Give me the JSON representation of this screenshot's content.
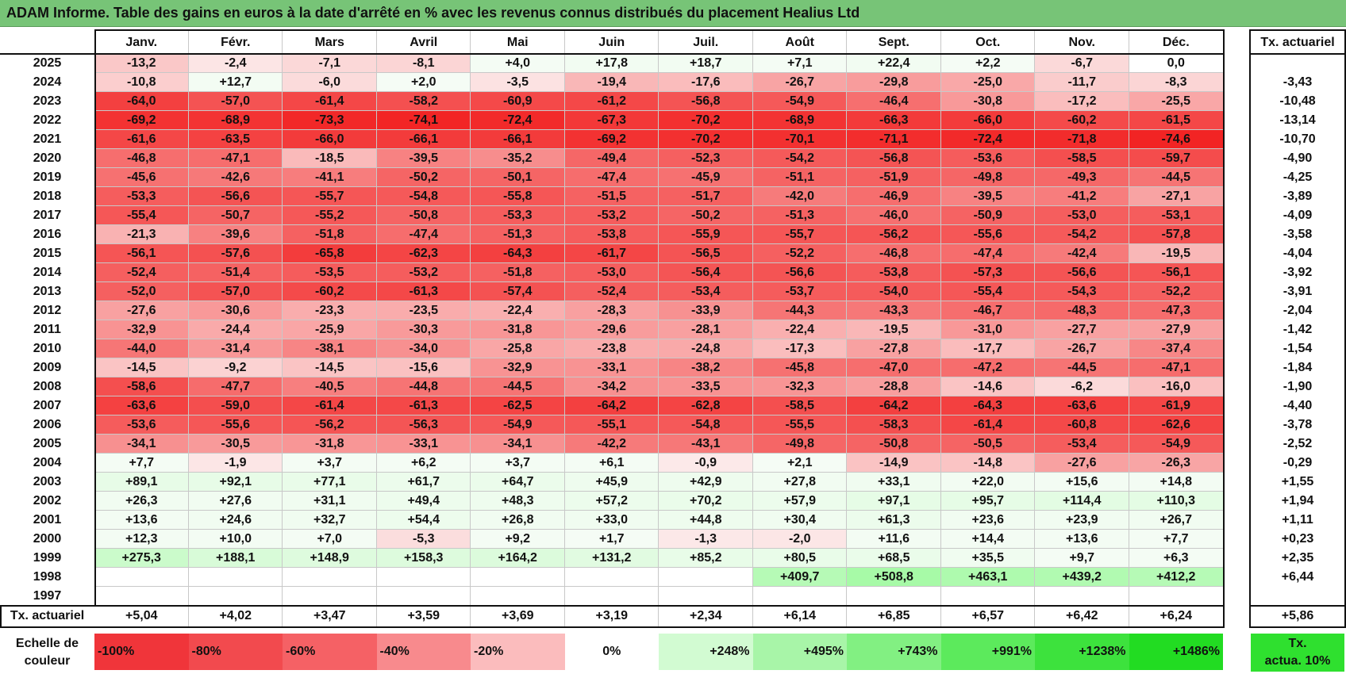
{
  "title": "ADAM Informe. Table des gains en euros à la date d'arrêté en % avec les revenus connus distribués du placement Healius Ltd",
  "chart_data": {
    "type": "heatmap",
    "months": [
      "Janv.",
      "Févr.",
      "Mars",
      "Avril",
      "Mai",
      "Juin",
      "Juil.",
      "Août",
      "Sept.",
      "Oct.",
      "Nov.",
      "Déc."
    ],
    "annual_header": "Tx. actuariel",
    "rows": [
      {
        "year": "2025",
        "values": [
          "-13,2",
          "-2,4",
          "-7,1",
          "-8,1",
          "+4,0",
          "+17,8",
          "+18,7",
          "+7,1",
          "+22,4",
          "+2,2",
          "-6,7",
          "0,0"
        ],
        "annual": ""
      },
      {
        "year": "2024",
        "values": [
          "-10,8",
          "+12,7",
          "-6,0",
          "+2,0",
          "-3,5",
          "-19,4",
          "-17,6",
          "-26,7",
          "-29,8",
          "-25,0",
          "-11,7",
          "-8,3"
        ],
        "annual": "-3,43"
      },
      {
        "year": "2023",
        "values": [
          "-64,0",
          "-57,0",
          "-61,4",
          "-58,2",
          "-60,9",
          "-61,2",
          "-56,8",
          "-54,9",
          "-46,4",
          "-30,8",
          "-17,2",
          "-25,5"
        ],
        "annual": "-10,48"
      },
      {
        "year": "2022",
        "values": [
          "-69,2",
          "-68,9",
          "-73,3",
          "-74,1",
          "-72,4",
          "-67,3",
          "-70,2",
          "-68,9",
          "-66,3",
          "-66,0",
          "-60,2",
          "-61,5"
        ],
        "annual": "-13,14"
      },
      {
        "year": "2021",
        "values": [
          "-61,6",
          "-63,5",
          "-66,0",
          "-66,1",
          "-66,1",
          "-69,2",
          "-70,2",
          "-70,1",
          "-71,1",
          "-72,4",
          "-71,8",
          "-74,6"
        ],
        "annual": "-10,70"
      },
      {
        "year": "2020",
        "values": [
          "-46,8",
          "-47,1",
          "-18,5",
          "-39,5",
          "-35,2",
          "-49,4",
          "-52,3",
          "-54,2",
          "-56,8",
          "-53,6",
          "-58,5",
          "-59,7"
        ],
        "annual": "-4,90"
      },
      {
        "year": "2019",
        "values": [
          "-45,6",
          "-42,6",
          "-41,1",
          "-50,2",
          "-50,1",
          "-47,4",
          "-45,9",
          "-51,1",
          "-51,9",
          "-49,8",
          "-49,3",
          "-44,5"
        ],
        "annual": "-4,25"
      },
      {
        "year": "2018",
        "values": [
          "-53,3",
          "-56,6",
          "-55,7",
          "-54,8",
          "-55,8",
          "-51,5",
          "-51,7",
          "-42,0",
          "-46,9",
          "-39,5",
          "-41,2",
          "-27,1"
        ],
        "annual": "-3,89"
      },
      {
        "year": "2017",
        "values": [
          "-55,4",
          "-50,7",
          "-55,2",
          "-50,8",
          "-53,3",
          "-53,2",
          "-50,2",
          "-51,3",
          "-46,0",
          "-50,9",
          "-53,0",
          "-53,1"
        ],
        "annual": "-4,09"
      },
      {
        "year": "2016",
        "values": [
          "-21,3",
          "-39,6",
          "-51,8",
          "-47,4",
          "-51,3",
          "-53,8",
          "-55,9",
          "-55,7",
          "-56,2",
          "-55,6",
          "-54,2",
          "-57,8"
        ],
        "annual": "-3,58"
      },
      {
        "year": "2015",
        "values": [
          "-56,1",
          "-57,6",
          "-65,8",
          "-62,3",
          "-64,3",
          "-61,7",
          "-56,5",
          "-52,2",
          "-46,8",
          "-47,4",
          "-42,4",
          "-19,5"
        ],
        "annual": "-4,04"
      },
      {
        "year": "2014",
        "values": [
          "-52,4",
          "-51,4",
          "-53,5",
          "-53,2",
          "-51,8",
          "-53,0",
          "-56,4",
          "-56,6",
          "-53,8",
          "-57,3",
          "-56,6",
          "-56,1"
        ],
        "annual": "-3,92"
      },
      {
        "year": "2013",
        "values": [
          "-52,0",
          "-57,0",
          "-60,2",
          "-61,3",
          "-57,4",
          "-52,4",
          "-53,4",
          "-53,7",
          "-54,0",
          "-55,4",
          "-54,3",
          "-52,2"
        ],
        "annual": "-3,91"
      },
      {
        "year": "2012",
        "values": [
          "-27,6",
          "-30,6",
          "-23,3",
          "-23,5",
          "-22,4",
          "-28,3",
          "-33,9",
          "-44,3",
          "-43,3",
          "-46,7",
          "-48,3",
          "-47,3"
        ],
        "annual": "-2,04"
      },
      {
        "year": "2011",
        "values": [
          "-32,9",
          "-24,4",
          "-25,9",
          "-30,3",
          "-31,8",
          "-29,6",
          "-28,1",
          "-22,4",
          "-19,5",
          "-31,0",
          "-27,7",
          "-27,9"
        ],
        "annual": "-1,42"
      },
      {
        "year": "2010",
        "values": [
          "-44,0",
          "-31,4",
          "-38,1",
          "-34,0",
          "-25,8",
          "-23,8",
          "-24,8",
          "-17,3",
          "-27,8",
          "-17,7",
          "-26,7",
          "-37,4"
        ],
        "annual": "-1,54"
      },
      {
        "year": "2009",
        "values": [
          "-14,5",
          "-9,2",
          "-14,5",
          "-15,6",
          "-32,9",
          "-33,1",
          "-38,2",
          "-45,8",
          "-47,0",
          "-47,2",
          "-44,5",
          "-47,1"
        ],
        "annual": "-1,84"
      },
      {
        "year": "2008",
        "values": [
          "-58,6",
          "-47,7",
          "-40,5",
          "-44,8",
          "-44,5",
          "-34,2",
          "-33,5",
          "-32,3",
          "-28,8",
          "-14,6",
          "-6,2",
          "-16,0"
        ],
        "annual": "-1,90"
      },
      {
        "year": "2007",
        "values": [
          "-63,6",
          "-59,0",
          "-61,4",
          "-61,3",
          "-62,5",
          "-64,2",
          "-62,8",
          "-58,5",
          "-64,2",
          "-64,3",
          "-63,6",
          "-61,9"
        ],
        "annual": "-4,40"
      },
      {
        "year": "2006",
        "values": [
          "-53,6",
          "-55,6",
          "-56,2",
          "-56,3",
          "-54,9",
          "-55,1",
          "-54,8",
          "-55,5",
          "-58,3",
          "-61,4",
          "-60,8",
          "-62,6"
        ],
        "annual": "-3,78"
      },
      {
        "year": "2005",
        "values": [
          "-34,1",
          "-30,5",
          "-31,8",
          "-33,1",
          "-34,1",
          "-42,2",
          "-43,1",
          "-49,8",
          "-50,8",
          "-50,5",
          "-53,4",
          "-54,9"
        ],
        "annual": "-2,52"
      },
      {
        "year": "2004",
        "values": [
          "+7,7",
          "-1,9",
          "+3,7",
          "+6,2",
          "+3,7",
          "+6,1",
          "-0,9",
          "+2,1",
          "-14,9",
          "-14,8",
          "-27,6",
          "-26,3"
        ],
        "annual": "-0,29"
      },
      {
        "year": "2003",
        "values": [
          "+89,1",
          "+92,1",
          "+77,1",
          "+61,7",
          "+64,7",
          "+45,9",
          "+42,9",
          "+27,8",
          "+33,1",
          "+22,0",
          "+15,6",
          "+14,8"
        ],
        "annual": "+1,55"
      },
      {
        "year": "2002",
        "values": [
          "+26,3",
          "+27,6",
          "+31,1",
          "+49,4",
          "+48,3",
          "+57,2",
          "+70,2",
          "+57,9",
          "+97,1",
          "+95,7",
          "+114,4",
          "+110,3"
        ],
        "annual": "+1,94"
      },
      {
        "year": "2001",
        "values": [
          "+13,6",
          "+24,6",
          "+32,7",
          "+54,4",
          "+26,8",
          "+33,0",
          "+44,8",
          "+30,4",
          "+61,3",
          "+23,6",
          "+23,9",
          "+26,7"
        ],
        "annual": "+1,11"
      },
      {
        "year": "2000",
        "values": [
          "+12,3",
          "+10,0",
          "+7,0",
          "-5,3",
          "+9,2",
          "+1,7",
          "-1,3",
          "-2,0",
          "+11,6",
          "+14,4",
          "+13,6",
          "+7,7"
        ],
        "annual": "+0,23"
      },
      {
        "year": "1999",
        "values": [
          "+275,3",
          "+188,1",
          "+148,9",
          "+158,3",
          "+164,2",
          "+131,2",
          "+85,2",
          "+80,5",
          "+68,5",
          "+35,5",
          "+9,7",
          "+6,3"
        ],
        "annual": "+2,35"
      },
      {
        "year": "1998",
        "values": [
          "",
          "",
          "",
          "",
          "",
          "",
          "",
          "+409,7",
          "+508,8",
          "+463,1",
          "+439,2",
          "+412,2"
        ],
        "annual": "+6,44"
      },
      {
        "year": "1997",
        "values": [
          "",
          "",
          "",
          "",
          "",
          "",
          "",
          "",
          "",
          "",
          "",
          ""
        ],
        "annual": ""
      }
    ],
    "footer": {
      "label": "Tx. actuariel",
      "values": [
        "+5,04",
        "+4,02",
        "+3,47",
        "+3,59",
        "+3,69",
        "+3,19",
        "+2,34",
        "+6,14",
        "+6,85",
        "+6,57",
        "+6,42",
        "+6,24"
      ],
      "annual": "+5,86"
    },
    "color_scale": {
      "label_line1": "Echelle de",
      "label_line2": "couleur",
      "stops": [
        {
          "label": "-100%",
          "color": "#f0353a",
          "align": "left"
        },
        {
          "label": "-80%",
          "color": "#f24a4e",
          "align": "left"
        },
        {
          "label": "-60%",
          "color": "#f56165",
          "align": "left"
        },
        {
          "label": "-40%",
          "color": "#f88a8d",
          "align": "left"
        },
        {
          "label": "-20%",
          "color": "#fbbcbd",
          "align": "left"
        },
        {
          "label": "0%",
          "color": "#ffffff",
          "align": "center"
        },
        {
          "label": "+248%",
          "color": "#d2fbd2",
          "align": "right"
        },
        {
          "label": "+495%",
          "color": "#a8f5a8",
          "align": "right"
        },
        {
          "label": "+743%",
          "color": "#82f082",
          "align": "right"
        },
        {
          "label": "+991%",
          "color": "#5cea5c",
          "align": "right"
        },
        {
          "label": "+1238%",
          "color": "#3de23d",
          "align": "right"
        },
        {
          "label": "+1486%",
          "color": "#22dc22",
          "align": "right"
        }
      ],
      "annual_label_line1": "Tx.",
      "annual_label_line2": "actua. 10%",
      "annual_color": "#2fe02f"
    }
  }
}
